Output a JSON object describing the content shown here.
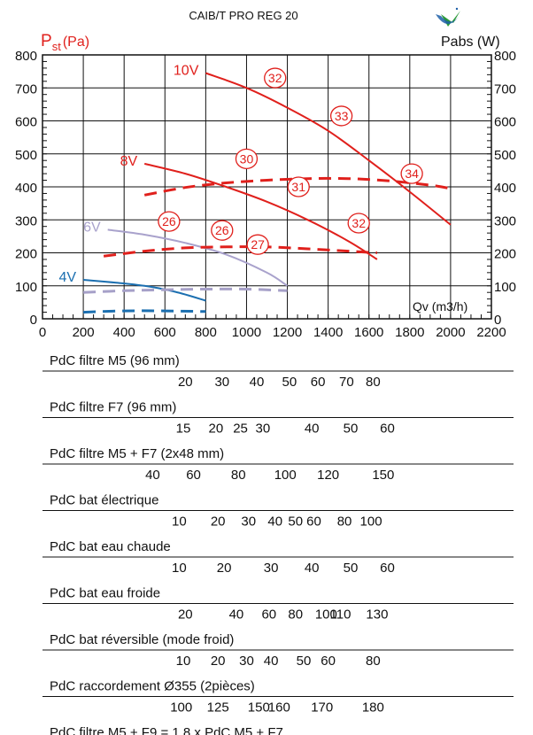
{
  "title": "CAIB/T PRO REG 20",
  "logo_icon": "checkmark-badge-icon",
  "colors": {
    "red": "#e0201c",
    "purple": "#a9a2cc",
    "blue": "#1b6fb0",
    "dashed_gray": "#a6a0c8",
    "axis": "#111111"
  },
  "chart_data": {
    "type": "line",
    "ylabel_left": {
      "main": "P",
      "sub": "st",
      "unit": "(Pa)"
    },
    "ylabel_right": "Pabs  (W)",
    "xlabel": "Qv (m3/h)",
    "xlim": [
      0,
      2200
    ],
    "ylim": [
      0,
      800
    ],
    "x_ticks": [
      0,
      200,
      400,
      600,
      800,
      1000,
      1200,
      1400,
      1600,
      1800,
      2000,
      2200
    ],
    "y_ticks": [
      0,
      100,
      200,
      300,
      400,
      500,
      600,
      700,
      800
    ],
    "grid": true,
    "series": [
      {
        "name": "10V",
        "color": "#e0201c",
        "kind": "pressure",
        "points": [
          [
            800,
            745
          ],
          [
            1000,
            700
          ],
          [
            1200,
            640
          ],
          [
            1400,
            570
          ],
          [
            1600,
            480
          ],
          [
            1800,
            385
          ],
          [
            2000,
            285
          ]
        ]
      },
      {
        "name": "8V",
        "color": "#e0201c",
        "kind": "pressure",
        "points": [
          [
            500,
            470
          ],
          [
            700,
            440
          ],
          [
            900,
            400
          ],
          [
            1100,
            355
          ],
          [
            1300,
            300
          ],
          [
            1500,
            235
          ],
          [
            1640,
            180
          ]
        ]
      },
      {
        "name": "6V",
        "color": "#a9a2cc",
        "kind": "pressure",
        "points": [
          [
            320,
            270
          ],
          [
            500,
            255
          ],
          [
            700,
            230
          ],
          [
            900,
            195
          ],
          [
            1100,
            140
          ],
          [
            1200,
            100
          ]
        ]
      },
      {
        "name": "4V",
        "color": "#1b6fb0",
        "kind": "pressure",
        "points": [
          [
            200,
            118
          ],
          [
            350,
            110
          ],
          [
            500,
            100
          ],
          [
            650,
            82
          ],
          [
            800,
            55
          ]
        ]
      },
      {
        "name": "",
        "color": "#e0201c",
        "kind": "power",
        "points": [
          [
            500,
            375
          ],
          [
            700,
            398
          ],
          [
            900,
            412
          ],
          [
            1100,
            420
          ],
          [
            1300,
            425
          ],
          [
            1500,
            425
          ],
          [
            1700,
            418
          ],
          [
            1900,
            405
          ],
          [
            2000,
            395
          ]
        ]
      },
      {
        "name": "",
        "color": "#e0201c",
        "kind": "power",
        "points": [
          [
            300,
            190
          ],
          [
            500,
            205
          ],
          [
            700,
            215
          ],
          [
            900,
            218
          ],
          [
            1100,
            218
          ],
          [
            1300,
            212
          ],
          [
            1500,
            205
          ],
          [
            1640,
            200
          ]
        ]
      },
      {
        "name": "",
        "color": "#a6a0c8",
        "kind": "power",
        "points": [
          [
            200,
            80
          ],
          [
            400,
            85
          ],
          [
            600,
            88
          ],
          [
            800,
            90
          ],
          [
            1000,
            90
          ],
          [
            1200,
            85
          ]
        ]
      },
      {
        "name": "",
        "color": "#1b6fb0",
        "kind": "power",
        "points": [
          [
            200,
            20
          ],
          [
            400,
            24
          ],
          [
            600,
            24
          ],
          [
            800,
            22
          ]
        ]
      }
    ],
    "circle_labels": [
      {
        "text": "32",
        "x": 1140,
        "y": 730
      },
      {
        "text": "33",
        "x": 1465,
        "y": 615
      },
      {
        "text": "30",
        "x": 1000,
        "y": 485
      },
      {
        "text": "31",
        "x": 1255,
        "y": 400
      },
      {
        "text": "34",
        "x": 1810,
        "y": 440
      },
      {
        "text": "26",
        "x": 620,
        "y": 295
      },
      {
        "text": "26",
        "x": 880,
        "y": 268
      },
      {
        "text": "27",
        "x": 1055,
        "y": 225
      },
      {
        "text": "32",
        "x": 1550,
        "y": 290
      }
    ],
    "pressure_drop_scales": [
      {
        "label": "PdC filtre M5 (96 mm)",
        "ticks": [
          {
            "t": "20",
            "q": 700
          },
          {
            "t": "30",
            "q": 880
          },
          {
            "t": "40",
            "q": 1050
          },
          {
            "t": "50",
            "q": 1210
          },
          {
            "t": "60",
            "q": 1350
          },
          {
            "t": "70",
            "q": 1490
          },
          {
            "t": "80",
            "q": 1620
          }
        ]
      },
      {
        "label": "PdC filtre F7 (96 mm)",
        "ticks": [
          {
            "t": "15",
            "q": 690
          },
          {
            "t": "20",
            "q": 850
          },
          {
            "t": "25",
            "q": 970
          },
          {
            "t": "30",
            "q": 1080
          },
          {
            "t": "40",
            "q": 1320
          },
          {
            "t": "50",
            "q": 1510
          },
          {
            "t": "60",
            "q": 1690
          }
        ]
      },
      {
        "label": "PdC filtre M5 + F7 (2x48 mm)",
        "ticks": [
          {
            "t": "40",
            "q": 540
          },
          {
            "t": "60",
            "q": 740
          },
          {
            "t": "80",
            "q": 960
          },
          {
            "t": "100",
            "q": 1190
          },
          {
            "t": "120",
            "q": 1400
          },
          {
            "t": "150",
            "q": 1670
          }
        ]
      },
      {
        "label": "PdC bat électrique",
        "ticks": [
          {
            "t": "10",
            "q": 670
          },
          {
            "t": "20",
            "q": 860
          },
          {
            "t": "30",
            "q": 1010
          },
          {
            "t": "40",
            "q": 1140
          },
          {
            "t": "50",
            "q": 1240
          },
          {
            "t": "60",
            "q": 1330
          },
          {
            "t": "80",
            "q": 1480
          },
          {
            "t": "100",
            "q": 1610
          }
        ]
      },
      {
        "label": "PdC bat eau chaude",
        "ticks": [
          {
            "t": "10",
            "q": 670
          },
          {
            "t": "20",
            "q": 890
          },
          {
            "t": "30",
            "q": 1120
          },
          {
            "t": "40",
            "q": 1320
          },
          {
            "t": "50",
            "q": 1510
          },
          {
            "t": "60",
            "q": 1690
          }
        ]
      },
      {
        "label": "PdC bat eau froide",
        "ticks": [
          {
            "t": "20",
            "q": 700
          },
          {
            "t": "40",
            "q": 950
          },
          {
            "t": "60",
            "q": 1110
          },
          {
            "t": "80",
            "q": 1240
          },
          {
            "t": "100",
            "q": 1390
          },
          {
            "t": "110",
            "q": 1460
          },
          {
            "t": "130",
            "q": 1640
          }
        ]
      },
      {
        "label": "PdC bat réversible (mode froid)",
        "ticks": [
          {
            "t": "10",
            "q": 690
          },
          {
            "t": "20",
            "q": 860
          },
          {
            "t": "30",
            "q": 1000
          },
          {
            "t": "40",
            "q": 1120
          },
          {
            "t": "50",
            "q": 1280
          },
          {
            "t": "60",
            "q": 1400
          },
          {
            "t": "80",
            "q": 1620
          }
        ]
      },
      {
        "label": "PdC raccordement Ø355 (2pièces)",
        "ticks": [
          {
            "t": "100",
            "q": 680
          },
          {
            "t": "125",
            "q": 860
          },
          {
            "t": "150",
            "q": 1060
          },
          {
            "t": "160",
            "q": 1160
          },
          {
            "t": "170",
            "q": 1370
          },
          {
            "t": "180",
            "q": 1620
          }
        ]
      },
      {
        "label": "PdC filtre M5 + F9 = 1.8 x PdC M5 + F7",
        "ticks": []
      }
    ]
  }
}
